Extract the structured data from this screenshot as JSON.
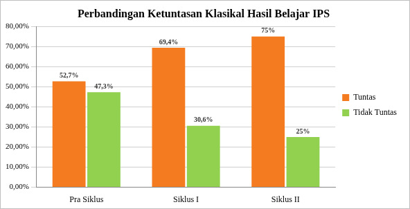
{
  "chart_data": {
    "type": "bar",
    "title": "Perbandingan Ketuntasan Klasikal Hasil Belajar IPS",
    "categories": [
      "Pra Siklus",
      "Siklus I",
      "Siklus II"
    ],
    "series": [
      {
        "name": "Tuntas",
        "color": "#f47b20",
        "values": [
          52.7,
          69.4,
          75
        ],
        "value_labels": [
          "52,7%",
          "69,4%",
          "75%"
        ]
      },
      {
        "name": "Tidak Tuntas",
        "color": "#92d050",
        "values": [
          47.3,
          30.6,
          25
        ],
        "value_labels": [
          "47,3%",
          "30,6%",
          "25%"
        ]
      }
    ],
    "ylim": [
      0,
      80
    ],
    "yticks": [
      {
        "value": 0,
        "label": "0,00%"
      },
      {
        "value": 10,
        "label": "10,00%"
      },
      {
        "value": 20,
        "label": "20,00%"
      },
      {
        "value": 30,
        "label": "30,00%"
      },
      {
        "value": 40,
        "label": "40,00%"
      },
      {
        "value": 50,
        "label": "50,00%"
      },
      {
        "value": 60,
        "label": "60,00%"
      },
      {
        "value": 70,
        "label": "70,00%"
      },
      {
        "value": 80,
        "label": "80,00%"
      }
    ],
    "grid": true,
    "legend": "right",
    "data_labels": true
  }
}
